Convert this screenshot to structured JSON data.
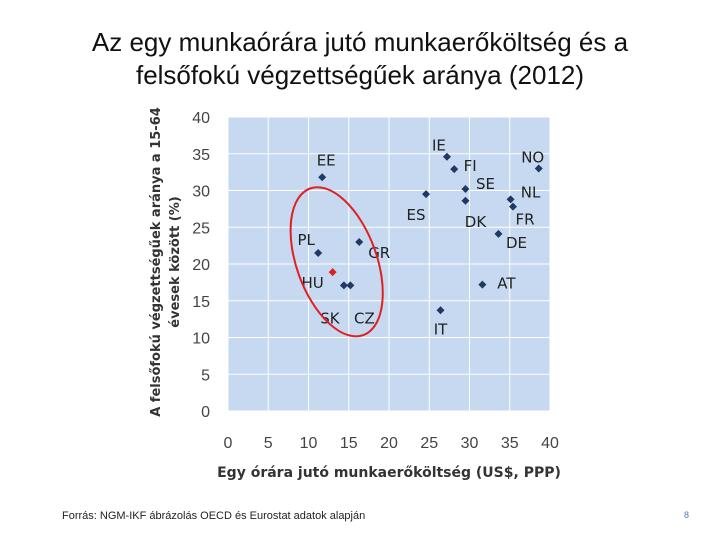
{
  "slide": {
    "title_line1": "Az egy munkaórára jutó munkaerőköltség és a",
    "title_line2": "felsőfokú végzettségűek aránya (2012)",
    "source": "Forrás: NGM-IKF ábrázolás OECD és Eurostat adatok alapján",
    "page_number": "8"
  },
  "chart_data": {
    "type": "scatter",
    "title": "",
    "xlabel": "Egy órára jutó munkaerőköltség (US$, PPP)",
    "ylabel_line1": "A felsőfokú végzettségűek aránya a 15-64",
    "ylabel_line2": "évesek között (%)",
    "xlim": [
      0,
      40
    ],
    "ylim": [
      0,
      40
    ],
    "xticks": [
      "0",
      "5",
      "10",
      "15",
      "20",
      "25",
      "30",
      "35",
      "40"
    ],
    "yticks": [
      "0",
      "5",
      "10",
      "15",
      "20",
      "25",
      "30",
      "35",
      "40"
    ],
    "grid": true,
    "plot_background": "#c6d9f1",
    "grid_color": "#ffffff",
    "point_color": "#1f3864",
    "highlight_color": "#e02020",
    "ellipse_color": "#e02020",
    "points": [
      {
        "label": "EE",
        "x": 11.7,
        "y": 31.8
      },
      {
        "label": "PL",
        "x": 11.2,
        "y": 21.5
      },
      {
        "label": "GR",
        "x": 16.3,
        "y": 23.0
      },
      {
        "label": "HU",
        "x": 13.0,
        "y": 18.9,
        "highlight": true
      },
      {
        "label": "SK",
        "x": 14.4,
        "y": 17.1
      },
      {
        "label": "CZ",
        "x": 15.2,
        "y": 17.1
      },
      {
        "label": "ES",
        "x": 24.6,
        "y": 29.5
      },
      {
        "label": "IE",
        "x": 27.2,
        "y": 34.6
      },
      {
        "label": "FI",
        "x": 28.1,
        "y": 32.9
      },
      {
        "label": "SE",
        "x": 29.5,
        "y": 30.2
      },
      {
        "label": "DK",
        "x": 29.5,
        "y": 28.6
      },
      {
        "label": "IT",
        "x": 26.4,
        "y": 13.7
      },
      {
        "label": "AT",
        "x": 31.6,
        "y": 17.2
      },
      {
        "label": "DE",
        "x": 33.6,
        "y": 24.1
      },
      {
        "label": "NL",
        "x": 35.1,
        "y": 28.8
      },
      {
        "label": "FR",
        "x": 35.4,
        "y": 27.8
      },
      {
        "label": "NO",
        "x": 38.6,
        "y": 33.0
      }
    ]
  }
}
